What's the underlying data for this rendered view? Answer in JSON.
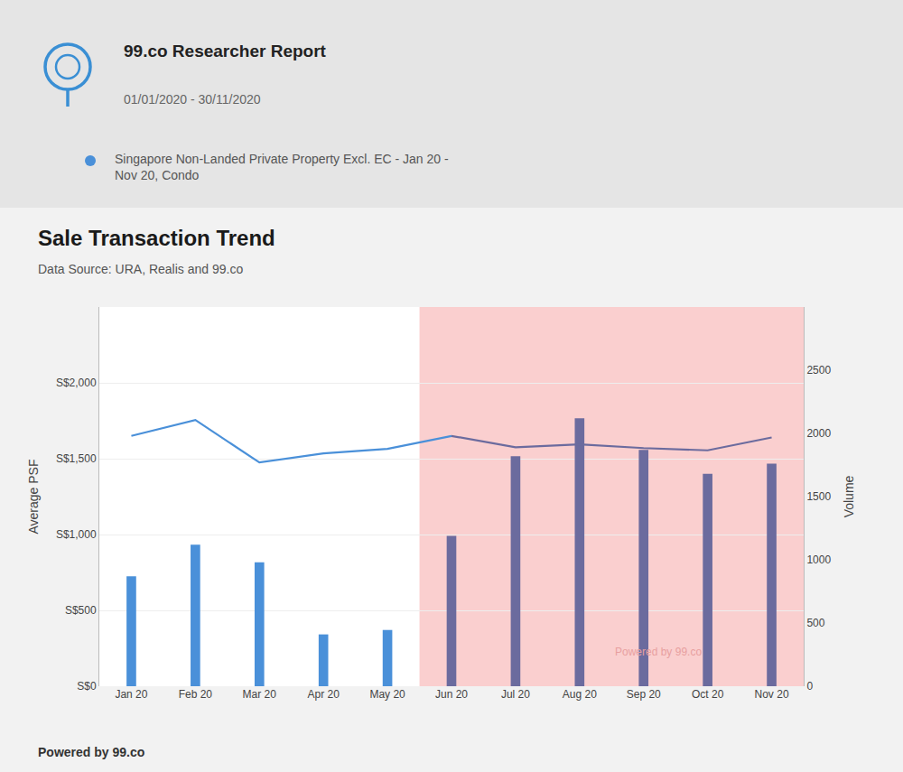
{
  "chart_data": {
    "type": "bar",
    "title": "Sale Transaction Trend",
    "subtitle": "Data Source: URA, Realis and 99.co",
    "categories": [
      "Jan 20",
      "Feb 20",
      "Mar 20",
      "Apr 20",
      "May 20",
      "Jun 20",
      "Jul 20",
      "Aug 20",
      "Sep 20",
      "Oct 20",
      "Nov 20"
    ],
    "series": [
      {
        "type": "bar",
        "axis": "y2",
        "colors": [
          "#4a90d9",
          "#4a90d9",
          "#4a90d9",
          "#4a90d9",
          "#4a90d9",
          "#6b6b9e",
          "#6b6b9e",
          "#6b6b9e",
          "#6b6b9e",
          "#6b6b9e",
          "#6b6b9e"
        ],
        "values": [
          870,
          1120,
          980,
          410,
          445,
          1190,
          1820,
          2120,
          1870,
          1680,
          1760
        ]
      },
      {
        "type": "line",
        "color": "#4a90d9",
        "values": [
          1650,
          1755,
          1475,
          1535,
          1565,
          1650,
          null,
          null,
          null,
          null,
          null
        ]
      },
      {
        "type": "line",
        "color": "#6b6b9e",
        "values": [
          null,
          null,
          null,
          null,
          null,
          1650,
          1575,
          1595,
          1570,
          1555,
          1640
        ]
      }
    ],
    "ylabel": "Average PSF",
    "y2label": "Volume",
    "ylim": [
      0,
      2500
    ],
    "yticks": [
      {
        "value": 0,
        "label": "S$0"
      },
      {
        "value": 500,
        "label": "S$500"
      },
      {
        "value": 1000,
        "label": "S$1,000"
      },
      {
        "value": 1500,
        "label": "S$1,500"
      },
      {
        "value": 2000,
        "label": "S$2,000"
      }
    ],
    "y2lim": [
      0,
      3000
    ],
    "y2ticks": [
      0,
      500,
      1000,
      1500,
      2000,
      2500
    ],
    "grid": true,
    "shapes": [
      {
        "type": "band",
        "from": "Jun 20",
        "to": "Nov 20",
        "color": "#f5a8a8"
      }
    ],
    "annotations": [
      {
        "text": "99.co Researcher Report"
      },
      {
        "text": "01/01/2020 - 30/11/2020"
      },
      {
        "text": "Singapore Non-Landed Private Property Excl. EC - Jan 20 -\nNov 20, Condo",
        "color": "#4a90d9"
      },
      {
        "text": "Powered by 99.co",
        "color": "#e8a0a0"
      },
      {
        "text": "Powered by 99.co"
      }
    ]
  }
}
